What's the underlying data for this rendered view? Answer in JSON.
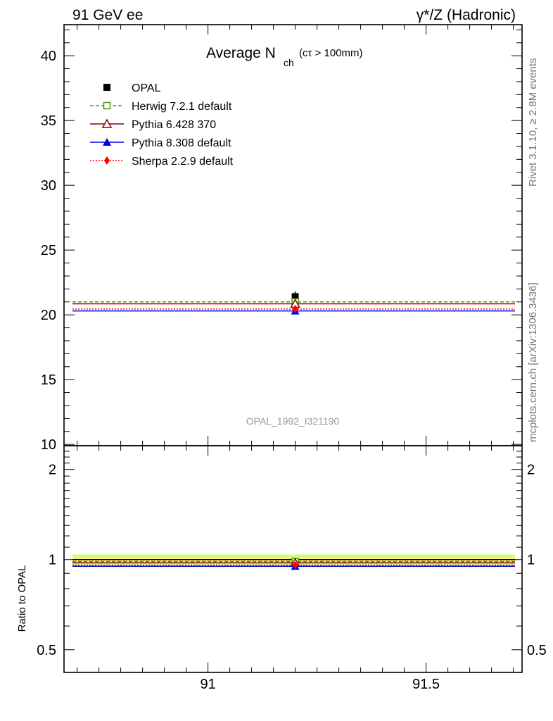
{
  "header": {
    "left": "91 GeV ee",
    "right": "γ*/Z (Hadronic)"
  },
  "side": {
    "rivet": "Rivet 3.1.10, ≥ 2.8M events",
    "mcplots": "mcplots.cern.ch [arXiv:1306.3436]"
  },
  "plot_title": {
    "main": "Average N",
    "sub": "ch",
    "cut": "(cτ > 100mm)"
  },
  "watermark": "OPAL_1992_I321190",
  "chart_data": [
    {
      "type": "line",
      "title": "Average N_ch (cτ > 100mm)",
      "xlim": [
        90.67,
        91.72
      ],
      "ylim": [
        9.9,
        42.4
      ],
      "x_ticks": [
        "91",
        "91.5"
      ],
      "y_ticks": [
        "10",
        "15",
        "20",
        "25",
        "30",
        "35",
        "40"
      ],
      "grid": false,
      "legend_position": "top-left",
      "bin": {
        "x": 91.2,
        "low": 90.67,
        "high": 91.72
      },
      "series": [
        {
          "name": "OPAL",
          "key": "opal",
          "y": 21.4,
          "y_err": 0.4,
          "color": "#000000",
          "dash": "",
          "marker": "square-filled"
        },
        {
          "name": "Herwig 7.2.1 default",
          "key": "herwig",
          "y": 21.0,
          "color": "#4a9a00",
          "dash": "5,3",
          "marker": "square-open"
        },
        {
          "name": "Pythia 6.428 370",
          "key": "pythia6",
          "y": 20.85,
          "color": "#8b0000",
          "dash": "",
          "marker": "triangle-open"
        },
        {
          "name": "Pythia 8.308 default",
          "key": "pythia8",
          "y": 20.3,
          "color": "#0000dd",
          "dash": "",
          "marker": "triangle-filled"
        },
        {
          "name": "Sherpa 2.2.9 default",
          "key": "sherpa",
          "y": 20.45,
          "color": "#ff0000",
          "dash": "2,2",
          "marker": "diamond-filled"
        }
      ]
    },
    {
      "type": "line",
      "ylabel": "Ratio to OPAL",
      "xlim": [
        90.67,
        91.72
      ],
      "ylim": [
        0.42,
        2.4
      ],
      "x_ticks": [
        "91",
        "91.5"
      ],
      "y_ticks": [
        "0.5",
        "1",
        "2"
      ],
      "log_y": true,
      "grid": false,
      "bands": [
        {
          "low": 0.96,
          "high": 1.04,
          "color": "#ccff88"
        },
        {
          "low": 0.985,
          "high": 1.015,
          "color": "#fff27a"
        }
      ],
      "series": [
        {
          "name": "Herwig 7.2.1 default",
          "key": "herwig",
          "y": 0.985
        },
        {
          "name": "Pythia 6.428 370",
          "key": "pythia6",
          "y": 0.975
        },
        {
          "name": "Pythia 8.308 default",
          "key": "pythia8",
          "y": 0.95
        },
        {
          "name": "Sherpa 2.2.9 default",
          "key": "sherpa",
          "y": 0.958
        }
      ]
    }
  ]
}
